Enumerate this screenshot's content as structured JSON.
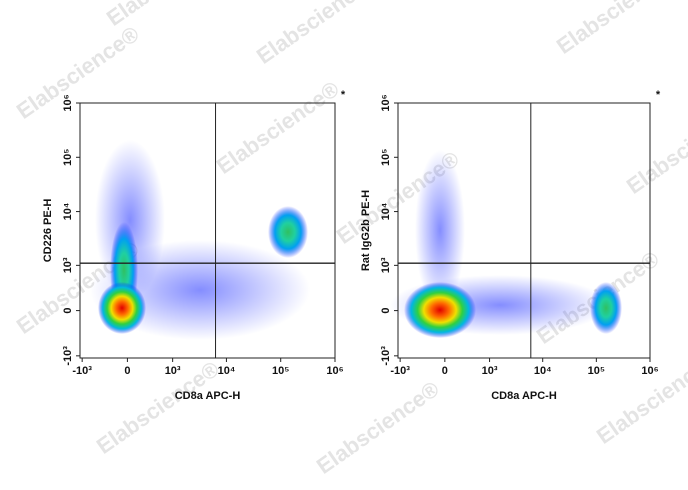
{
  "watermark": "Elabscience®",
  "chart_data": [
    {
      "type": "flow-density",
      "scale": "biexponential",
      "marker": "*",
      "x_label": "CD8a APC-H",
      "y_label": "CD226 PE-H",
      "xlim": [
        -1100,
        1000000
      ],
      "ylim": [
        -1100,
        1000000
      ],
      "xticks": [
        {
          "value": -1000,
          "label": "-10³"
        },
        0,
        {
          "value": 1000,
          "label": "10³"
        },
        {
          "value": 10000,
          "label": "10⁴"
        },
        {
          "value": 100000,
          "label": "10⁵"
        },
        {
          "value": 1000000,
          "label": "10⁶"
        }
      ],
      "yticks": [
        {
          "value": -1000,
          "label": "-10³"
        },
        0,
        {
          "value": 1000,
          "label": "10³"
        },
        {
          "value": 10000,
          "label": "10⁴"
        },
        {
          "value": 100000,
          "label": "10⁵"
        },
        {
          "value": 1000000,
          "label": "10⁶"
        }
      ],
      "gate": {
        "x": 6300,
        "y": 1100
      }
    },
    {
      "type": "flow-density",
      "scale": "biexponential",
      "marker": "*",
      "x_label": "CD8a APC-H",
      "y_label": "Rat IgG2b PE-H",
      "xlim": [
        -1100,
        1000000
      ],
      "ylim": [
        -1100,
        1000000
      ],
      "xticks": [
        {
          "value": -1000,
          "label": "-10³"
        },
        0,
        {
          "value": 1000,
          "label": "10³"
        },
        {
          "value": 10000,
          "label": "10⁴"
        },
        {
          "value": 100000,
          "label": "10⁵"
        },
        {
          "value": 1000000,
          "label": "10⁶"
        }
      ],
      "yticks": [
        {
          "value": -1000,
          "label": "-10³"
        },
        0,
        {
          "value": 1000,
          "label": "10³"
        },
        {
          "value": 10000,
          "label": "10⁴"
        },
        {
          "value": 100000,
          "label": "10⁵"
        },
        {
          "value": 1000000,
          "label": "10⁶"
        }
      ],
      "gate": {
        "x": 6000,
        "y": 1100
      }
    }
  ]
}
